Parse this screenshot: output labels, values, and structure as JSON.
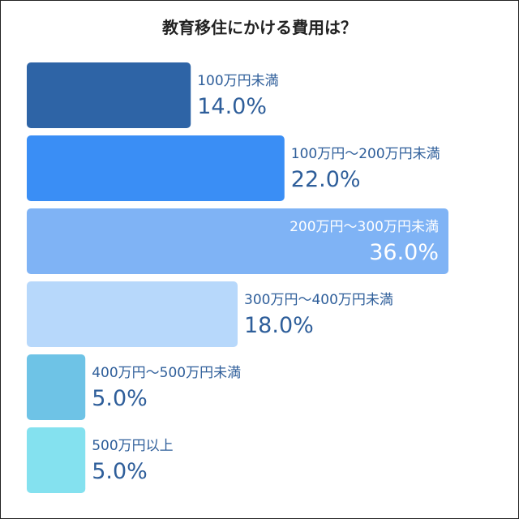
{
  "chart_data": {
    "type": "bar",
    "orientation": "horizontal",
    "title": "教育移住にかける費用は？",
    "categories": [
      "100万円未満",
      "100万円～200万円未満",
      "200万円～300万円未満",
      "300万円～400万円未満",
      "400万円～500万円未満",
      "500万円以上"
    ],
    "values": [
      14.0,
      22.0,
      36.0,
      18.0,
      5.0,
      5.0
    ],
    "value_labels": [
      "14.0%",
      "22.0%",
      "36.0%",
      "18.0%",
      "5.0%",
      "5.0%"
    ],
    "colors": [
      "#2e64a6",
      "#3a8ef5",
      "#7fb3f5",
      "#b7d8fb",
      "#6ec3e6",
      "#84e1ef"
    ],
    "xlim": [
      0,
      36
    ],
    "legend": "none",
    "grid": false
  }
}
